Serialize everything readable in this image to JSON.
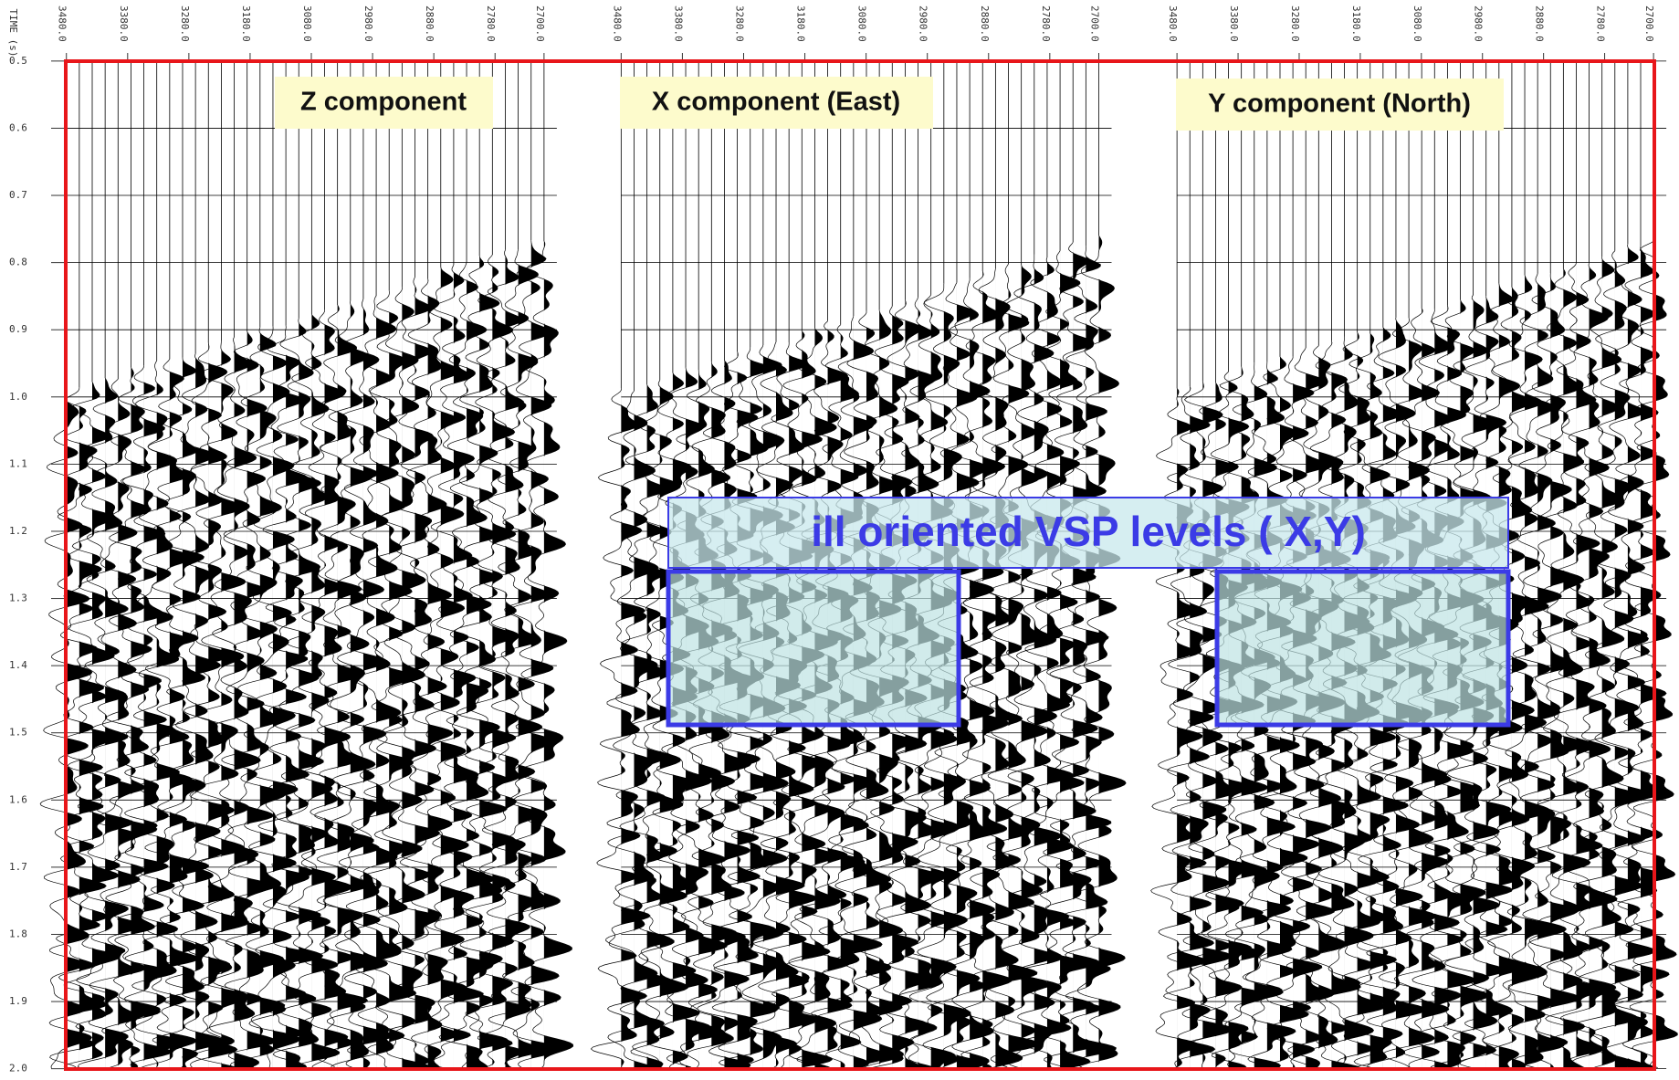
{
  "chart_data": [
    {
      "type": "wiggle",
      "title": "Z component",
      "y_label": "TIME (s)",
      "xlim": [
        3480,
        2700
      ],
      "xticks": [
        {
          "value": 3480,
          "label": "3480.0"
        },
        {
          "value": 3380,
          "label": "3380.0"
        },
        {
          "value": 3280,
          "label": "3280.0"
        },
        {
          "value": 3180,
          "label": "3180.0"
        },
        {
          "value": 3080,
          "label": "3080.0"
        },
        {
          "value": 2980,
          "label": "2980.0"
        },
        {
          "value": 2880,
          "label": "2880.0"
        },
        {
          "value": 2780,
          "label": "2780.0"
        },
        {
          "value": 2700,
          "label": "2700.0"
        }
      ],
      "ylim": [
        0.5,
        2.0
      ],
      "yticks": [
        0.5,
        0.6,
        0.7,
        0.8,
        0.9,
        {
          "value": 1,
          "label": "1.0"
        },
        1.1,
        1.2,
        1.3,
        1.4,
        1.5,
        1.6,
        1.7,
        1.8,
        1.9,
        {
          "value": 2,
          "label": "2.0"
        }
      ]
    },
    {
      "type": "wiggle",
      "title": "X component (East)",
      "xlim": [
        3480,
        2700
      ],
      "xticks": [
        {
          "value": 3480,
          "label": "3480.0"
        },
        {
          "value": 3380,
          "label": "3380.0"
        },
        {
          "value": 3280,
          "label": "3280.0"
        },
        {
          "value": 3180,
          "label": "3180.0"
        },
        {
          "value": 3080,
          "label": "3080.0"
        },
        {
          "value": 2980,
          "label": "2980.0"
        },
        {
          "value": 2880,
          "label": "2880.0"
        },
        {
          "value": 2780,
          "label": "2780.0"
        },
        {
          "value": 2700,
          "label": "2700.0"
        }
      ]
    },
    {
      "type": "wiggle",
      "title": "Y component (North)",
      "xlim": [
        3480,
        2700
      ],
      "xticks": [
        {
          "value": 3480,
          "label": "3480.0"
        },
        {
          "value": 3380,
          "label": "3380.0"
        },
        {
          "value": 3280,
          "label": "3280.0"
        },
        {
          "value": 3180,
          "label": "3180.0"
        },
        {
          "value": 3080,
          "label": "3080.0"
        },
        {
          "value": 2980,
          "label": "2980.0"
        },
        {
          "value": 2880,
          "label": "2880.0"
        },
        {
          "value": 2780,
          "label": "2780.0"
        },
        {
          "value": 2700,
          "label": "2700.0"
        }
      ]
    }
  ],
  "annotation": "ill oriented VSP levels ( X,Y)"
}
